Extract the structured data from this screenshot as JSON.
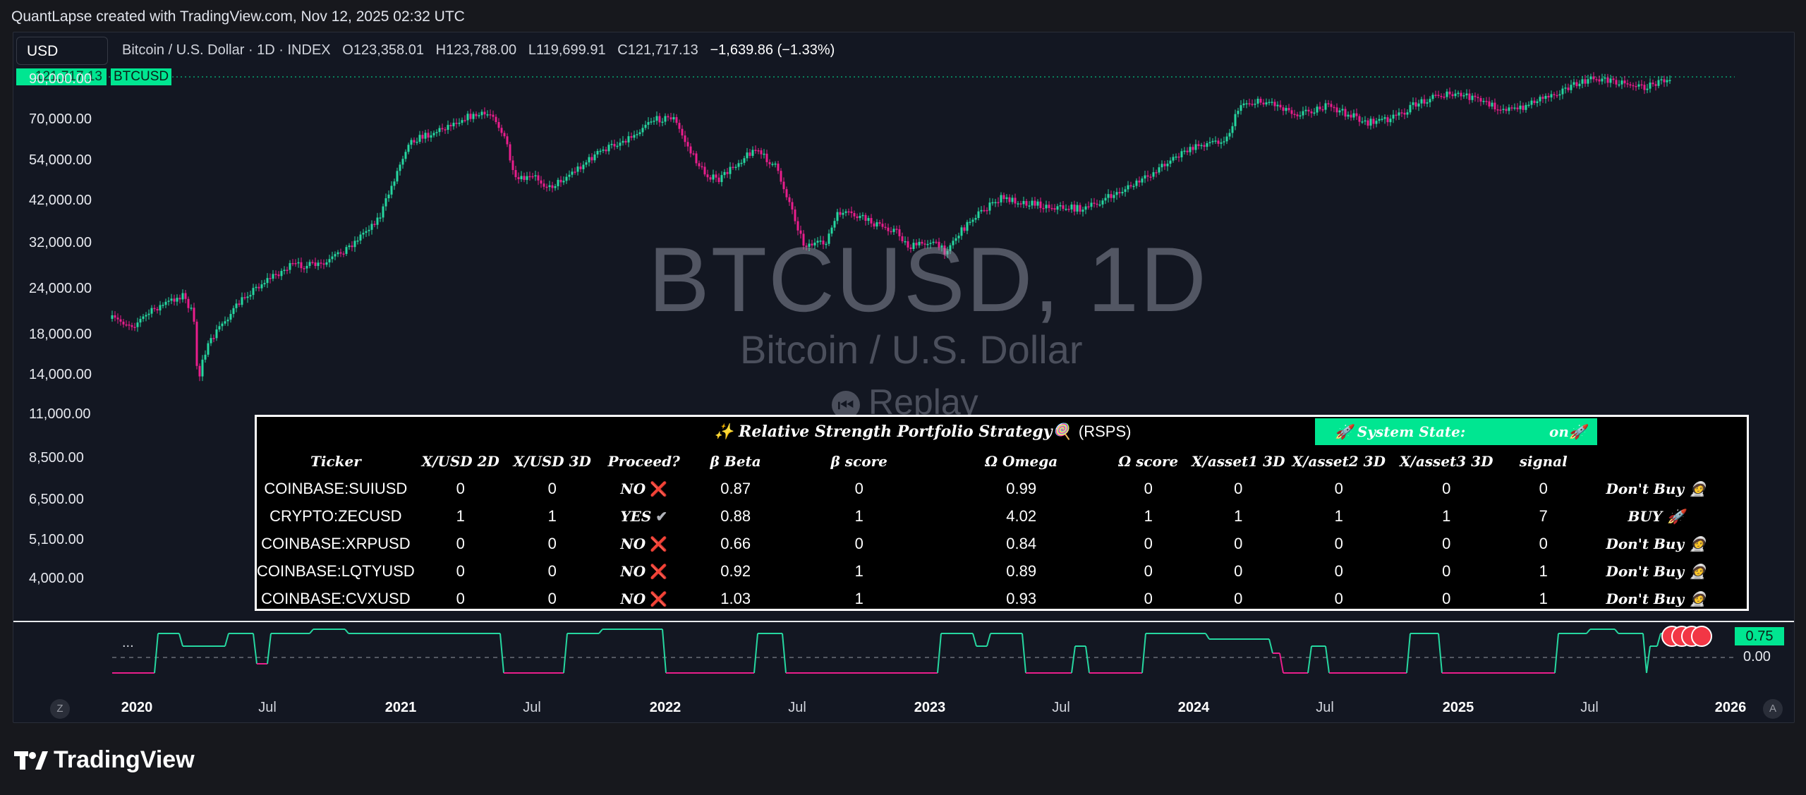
{
  "header": {
    "attribution": "QuantLapse created with TradingView.com, Nov 12, 2025 02:32 UTC"
  },
  "toolbar": {
    "currency": "USD"
  },
  "legend": {
    "symbol_desc": "Bitcoin / U.S. Dollar · 1D · INDEX",
    "open": "O123,358.01",
    "high": "H123,788.00",
    "low": "L119,699.91",
    "close": "C121,717.13",
    "change": "−1,639.86 (−1.33%)"
  },
  "last_price": {
    "label": "121,717.13",
    "symbol": "BTCUSD"
  },
  "watermark": {
    "title": "BTCUSD, 1D",
    "subtitle": "Bitcoin / U.S. Dollar",
    "replay": "Replay"
  },
  "y_axis": [
    "90,000.00",
    "70,000.00",
    "54,000.00",
    "42,000.00",
    "32,000.00",
    "24,000.00",
    "18,000.00",
    "14,000.00",
    "11,000.00",
    "8,500.00",
    "6,500.00",
    "5,100.00",
    "4,000.00"
  ],
  "x_axis": [
    {
      "label": "2020",
      "year": true
    },
    {
      "label": "Jul",
      "year": false
    },
    {
      "label": "2021",
      "year": true
    },
    {
      "label": "Jul",
      "year": false
    },
    {
      "label": "2022",
      "year": true
    },
    {
      "label": "Jul",
      "year": false
    },
    {
      "label": "2023",
      "year": true
    },
    {
      "label": "Jul",
      "year": false
    },
    {
      "label": "2024",
      "year": true
    },
    {
      "label": "Jul",
      "year": false
    },
    {
      "label": "2025",
      "year": true
    },
    {
      "label": "Jul",
      "year": false
    },
    {
      "label": "2026",
      "year": true
    }
  ],
  "oscillator": {
    "dots": "...",
    "value_tag": "0.75",
    "zero_label": "0.00"
  },
  "corner_buttons": {
    "left": "Z",
    "right": "A"
  },
  "colors": {
    "bull": "#26d7a0",
    "bear": "#e91e8c",
    "accent": "#00e691",
    "bg": "#131722"
  },
  "rsps": {
    "title": "✨ Relative Strength Portfolio Strategy🍭",
    "abbr": "(RSPS)",
    "system_state_key": "🚀 System State:",
    "system_state_value": "on🚀",
    "headers": [
      "Ticker",
      "X/USD 2D",
      "X/USD 3D",
      "Proceed?",
      "β Beta",
      "β score",
      "Ω Omega",
      "Ω score",
      "X/asset1 3D",
      "X/asset2 3D",
      "X/asset3 3D",
      "signal",
      ""
    ],
    "rows": [
      {
        "ticker": "COINBASE:SUIUSD",
        "xusd2d": "0",
        "xusd3d": "0",
        "proceed": "NO",
        "proceed_mark": "❌",
        "beta": "0.87",
        "beta_score": "0",
        "omega": "0.99",
        "omega_score": "0",
        "a1": "0",
        "a2": "0",
        "a3": "0",
        "signal": "0",
        "action": "Don't Buy 🧑‍🚀"
      },
      {
        "ticker": "CRYPTO:ZECUSD",
        "xusd2d": "1",
        "xusd3d": "1",
        "proceed": "YES",
        "proceed_mark": "✔",
        "beta": "0.88",
        "beta_score": "1",
        "omega": "4.02",
        "omega_score": "1",
        "a1": "1",
        "a2": "1",
        "a3": "1",
        "signal": "7",
        "action": "BUY 🚀"
      },
      {
        "ticker": "COINBASE:XRPUSD",
        "xusd2d": "0",
        "xusd3d": "0",
        "proceed": "NO",
        "proceed_mark": "❌",
        "beta": "0.66",
        "beta_score": "0",
        "omega": "0.84",
        "omega_score": "0",
        "a1": "0",
        "a2": "0",
        "a3": "0",
        "signal": "0",
        "action": "Don't Buy 🧑‍🚀"
      },
      {
        "ticker": "COINBASE:LQTYUSD",
        "xusd2d": "0",
        "xusd3d": "0",
        "proceed": "NO",
        "proceed_mark": "❌",
        "beta": "0.92",
        "beta_score": "1",
        "omega": "0.89",
        "omega_score": "0",
        "a1": "0",
        "a2": "0",
        "a3": "0",
        "signal": "1",
        "action": "Don't Buy 🧑‍🚀"
      },
      {
        "ticker": "COINBASE:CVXUSD",
        "xusd2d": "0",
        "xusd3d": "0",
        "proceed": "NO",
        "proceed_mark": "❌",
        "beta": "1.03",
        "beta_score": "1",
        "omega": "0.93",
        "omega_score": "0",
        "a1": "0",
        "a2": "0",
        "a3": "0",
        "signal": "1",
        "action": "Don't Buy 🧑‍🚀"
      }
    ]
  },
  "footer": {
    "brand": "TradingView"
  }
}
